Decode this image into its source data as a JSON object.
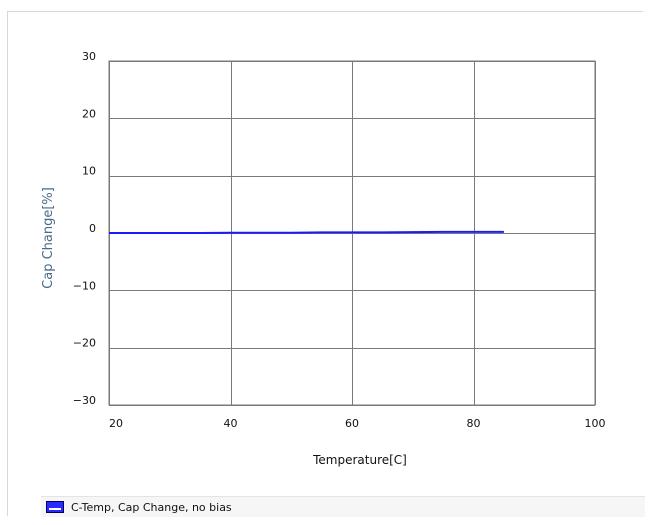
{
  "chart_data": {
    "type": "line",
    "xlabel": "Temperature[C]",
    "ylabel": "Cap Change[%]",
    "xlim": [
      20,
      100
    ],
    "ylim": [
      -30,
      30
    ],
    "x_ticks": [
      20,
      40,
      60,
      80,
      100
    ],
    "y_ticks": [
      30,
      20,
      10,
      0,
      -10,
      -20,
      -30
    ],
    "x_tick_labels": [
      "20",
      "40",
      "60",
      "80",
      "100"
    ],
    "y_tick_labels": [
      "30",
      "20",
      "10",
      "0",
      "−10",
      "−20",
      "−30"
    ],
    "grid": true,
    "legend_position": "bottom",
    "series": [
      {
        "name": "C-Temp, Cap Change, no bias",
        "color": "#1a1aff",
        "x": [
          20,
          25,
          30,
          35,
          40,
          45,
          50,
          55,
          60,
          65,
          70,
          75,
          80,
          85
        ],
        "y": [
          0.0,
          0.0,
          0.0,
          0.0,
          0.05,
          0.05,
          0.05,
          0.1,
          0.1,
          0.1,
          0.15,
          0.2,
          0.2,
          0.2
        ]
      }
    ]
  }
}
